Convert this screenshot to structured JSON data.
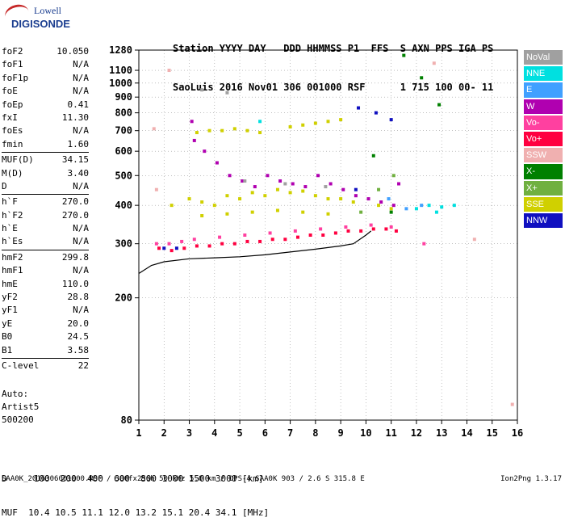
{
  "logo": {
    "line1": "Lowell",
    "line2": "DIGISONDE"
  },
  "header": {
    "row1": "Station YYYY DAY   DDD HHMMSS P1  FFS  S AXN PPS IGA PS",
    "row2": "SaoLuis 2016 Nov01 306 001000 RSF      1 715 100 00- 11"
  },
  "params": [
    {
      "label": "foF2",
      "value": "10.050"
    },
    {
      "label": "foF1",
      "value": "N/A"
    },
    {
      "label": "foF1p",
      "value": "N/A"
    },
    {
      "label": "foE",
      "value": "N/A"
    },
    {
      "label": "foEp",
      "value": "0.41"
    },
    {
      "label": "fxI",
      "value": "11.30"
    },
    {
      "label": "foEs",
      "value": "N/A"
    },
    {
      "label": "fmin",
      "value": "1.60"
    },
    {
      "label": "MUF(D)",
      "value": "34.15"
    },
    {
      "label": "M(D)",
      "value": "3.40"
    },
    {
      "label": "D",
      "value": "N/A"
    },
    {
      "label": "h`F",
      "value": "270.0"
    },
    {
      "label": "h`F2",
      "value": "270.0"
    },
    {
      "label": "h`E",
      "value": "N/A"
    },
    {
      "label": "h`Es",
      "value": "N/A"
    },
    {
      "label": "hmF2",
      "value": "299.8"
    },
    {
      "label": "hmF1",
      "value": "N/A"
    },
    {
      "label": "hmE",
      "value": "110.0"
    },
    {
      "label": "yF2",
      "value": "28.8"
    },
    {
      "label": "yF1",
      "value": "N/A"
    },
    {
      "label": "yE",
      "value": "20.0"
    },
    {
      "label": "B0",
      "value": "24.5"
    },
    {
      "label": "B1",
      "value": "3.58"
    },
    {
      "label": "C-level",
      "value": "22"
    }
  ],
  "auto": {
    "line1": "Auto:",
    "line2": "Artist5",
    "line3": "500200"
  },
  "legend": [
    {
      "label": "NoVal",
      "color": "#a0a0a0"
    },
    {
      "label": "NNE",
      "color": "#00e0e0"
    },
    {
      "label": "E",
      "color": "#40a0ff"
    },
    {
      "label": "W",
      "color": "#b000b0"
    },
    {
      "label": "Vo-",
      "color": "#ff40a0"
    },
    {
      "label": "Vo+",
      "color": "#ff0040"
    },
    {
      "label": "SSW",
      "color": "#f0b0b0"
    },
    {
      "label": "X-",
      "color": "#008000"
    },
    {
      "label": "X+",
      "color": "#70b040"
    },
    {
      "label": "SSE",
      "color": "#d0d000"
    },
    {
      "label": "NNW",
      "color": "#1010c0"
    }
  ],
  "footer": {
    "row1": "D     100  200  400  600  800 1000 1500 3000 [km]",
    "row2": "MUF  10.4 10.5 11.1 12.0 13.2 15.1 20.4 34.1 [MHz]",
    "file": "SAA0K_2016306001000.RSF / 300fx256h 50 kHz 5.0 km / DPS-4 SAA0K 903 / 2.6 S 315.8 E",
    "version": "Ion2Png 1.3.17"
  },
  "chart_data": {
    "type": "scatter",
    "xlim": [
      1,
      16
    ],
    "ylim": [
      80,
      1280
    ],
    "x_ticks": [
      1,
      2,
      3,
      4,
      5,
      6,
      7,
      8,
      9,
      10,
      11,
      12,
      13,
      14,
      15,
      16
    ],
    "y_ticks": [
      80,
      200,
      300,
      400,
      500,
      600,
      700,
      800,
      900,
      1000,
      1100,
      1280
    ],
    "grid": true,
    "scale_y": "log",
    "series": [
      {
        "name": "SSE",
        "color": "#d0d000",
        "points": [
          [
            2.3,
            400
          ],
          [
            3.0,
            420
          ],
          [
            3.5,
            410
          ],
          [
            4.0,
            400
          ],
          [
            4.5,
            430
          ],
          [
            5.0,
            420
          ],
          [
            5.5,
            440
          ],
          [
            6.0,
            430
          ],
          [
            6.5,
            450
          ],
          [
            7.0,
            440
          ],
          [
            7.5,
            445
          ],
          [
            8.0,
            430
          ],
          [
            8.5,
            420
          ],
          [
            9.0,
            420
          ],
          [
            9.5,
            410
          ],
          [
            10.5,
            400
          ],
          [
            11.0,
            390
          ],
          [
            3.5,
            370
          ],
          [
            4.5,
            375
          ],
          [
            5.5,
            380
          ],
          [
            6.5,
            385
          ],
          [
            7.5,
            380
          ],
          [
            8.5,
            375
          ],
          [
            3.3,
            690
          ],
          [
            3.8,
            700
          ],
          [
            4.3,
            700
          ],
          [
            4.8,
            710
          ],
          [
            5.3,
            700
          ],
          [
            5.8,
            690
          ],
          [
            7.0,
            720
          ],
          [
            7.5,
            730
          ],
          [
            8.0,
            740
          ],
          [
            8.5,
            750
          ],
          [
            9.0,
            760
          ]
        ]
      },
      {
        "name": "Vo+",
        "color": "#ff0040",
        "points": [
          [
            1.8,
            290
          ],
          [
            2.3,
            285
          ],
          [
            2.8,
            290
          ],
          [
            3.3,
            295
          ],
          [
            3.8,
            295
          ],
          [
            4.3,
            300
          ],
          [
            4.8,
            300
          ],
          [
            5.3,
            305
          ],
          [
            5.8,
            305
          ],
          [
            6.3,
            310
          ],
          [
            6.8,
            310
          ],
          [
            7.3,
            315
          ],
          [
            7.8,
            320
          ],
          [
            8.3,
            320
          ],
          [
            8.8,
            325
          ],
          [
            9.3,
            330
          ],
          [
            9.8,
            330
          ],
          [
            10.3,
            335
          ],
          [
            10.8,
            335
          ],
          [
            11.2,
            330
          ]
        ]
      },
      {
        "name": "Vo-",
        "color": "#ff40a0",
        "points": [
          [
            1.7,
            300
          ],
          [
            2.2,
            300
          ],
          [
            2.7,
            305
          ],
          [
            3.2,
            310
          ],
          [
            4.2,
            315
          ],
          [
            5.2,
            320
          ],
          [
            6.2,
            325
          ],
          [
            7.2,
            330
          ],
          [
            8.2,
            335
          ],
          [
            9.2,
            340
          ],
          [
            10.2,
            345
          ],
          [
            11.0,
            340
          ],
          [
            12.3,
            300
          ]
        ]
      },
      {
        "name": "W",
        "color": "#b000b0",
        "points": [
          [
            3.1,
            750
          ],
          [
            3.2,
            650
          ],
          [
            3.6,
            600
          ],
          [
            4.1,
            550
          ],
          [
            4.6,
            500
          ],
          [
            5.1,
            480
          ],
          [
            5.6,
            460
          ],
          [
            6.1,
            500
          ],
          [
            6.6,
            480
          ],
          [
            7.1,
            470
          ],
          [
            7.6,
            460
          ],
          [
            8.1,
            500
          ],
          [
            8.6,
            470
          ],
          [
            9.1,
            450
          ],
          [
            9.6,
            430
          ],
          [
            10.1,
            420
          ],
          [
            10.6,
            410
          ],
          [
            11.1,
            400
          ],
          [
            11.3,
            470
          ]
        ]
      },
      {
        "name": "NNE",
        "color": "#00e0e0",
        "points": [
          [
            12.0,
            390
          ],
          [
            12.5,
            400
          ],
          [
            13.0,
            395
          ],
          [
            13.5,
            400
          ],
          [
            12.8,
            380
          ],
          [
            5.8,
            750
          ]
        ]
      },
      {
        "name": "E",
        "color": "#40a0ff",
        "points": [
          [
            11.6,
            390
          ],
          [
            12.2,
            400
          ],
          [
            10.9,
            420
          ]
        ]
      },
      {
        "name": "X-",
        "color": "#008000",
        "points": [
          [
            11.5,
            1230
          ],
          [
            12.2,
            1040
          ],
          [
            12.9,
            850
          ],
          [
            10.3,
            580
          ],
          [
            11.0,
            380
          ]
        ]
      },
      {
        "name": "X+",
        "color": "#70b040",
        "points": [
          [
            11.1,
            500
          ],
          [
            10.5,
            450
          ],
          [
            9.8,
            380
          ]
        ]
      },
      {
        "name": "NNW",
        "color": "#1010c0",
        "points": [
          [
            9.7,
            830
          ],
          [
            10.4,
            800
          ],
          [
            11.0,
            760
          ],
          [
            2.0,
            290
          ],
          [
            2.5,
            290
          ],
          [
            9.6,
            450
          ]
        ]
      },
      {
        "name": "SSW",
        "color": "#f0b0b0",
        "points": [
          [
            1.6,
            710
          ],
          [
            1.7,
            450
          ],
          [
            2.2,
            1100
          ],
          [
            12.7,
            1160
          ],
          [
            14.3,
            310
          ],
          [
            15.8,
            90
          ]
        ]
      },
      {
        "name": "NoVal",
        "color": "#a0a0a0",
        "points": [
          [
            3.5,
            950
          ],
          [
            4.5,
            930
          ],
          [
            5.2,
            480
          ],
          [
            6.8,
            470
          ],
          [
            8.4,
            460
          ]
        ]
      }
    ],
    "curve": {
      "name": "",
      "color": "#000000",
      "points": [
        [
          1.0,
          240
        ],
        [
          1.5,
          255
        ],
        [
          2.0,
          262
        ],
        [
          3.0,
          268
        ],
        [
          4.0,
          270
        ],
        [
          5.0,
          272
        ],
        [
          6.0,
          276
        ],
        [
          7.0,
          282
        ],
        [
          8.0,
          288
        ],
        [
          9.0,
          295
        ],
        [
          9.5,
          300
        ],
        [
          10.0,
          320
        ],
        [
          10.2,
          330
        ]
      ]
    }
  }
}
